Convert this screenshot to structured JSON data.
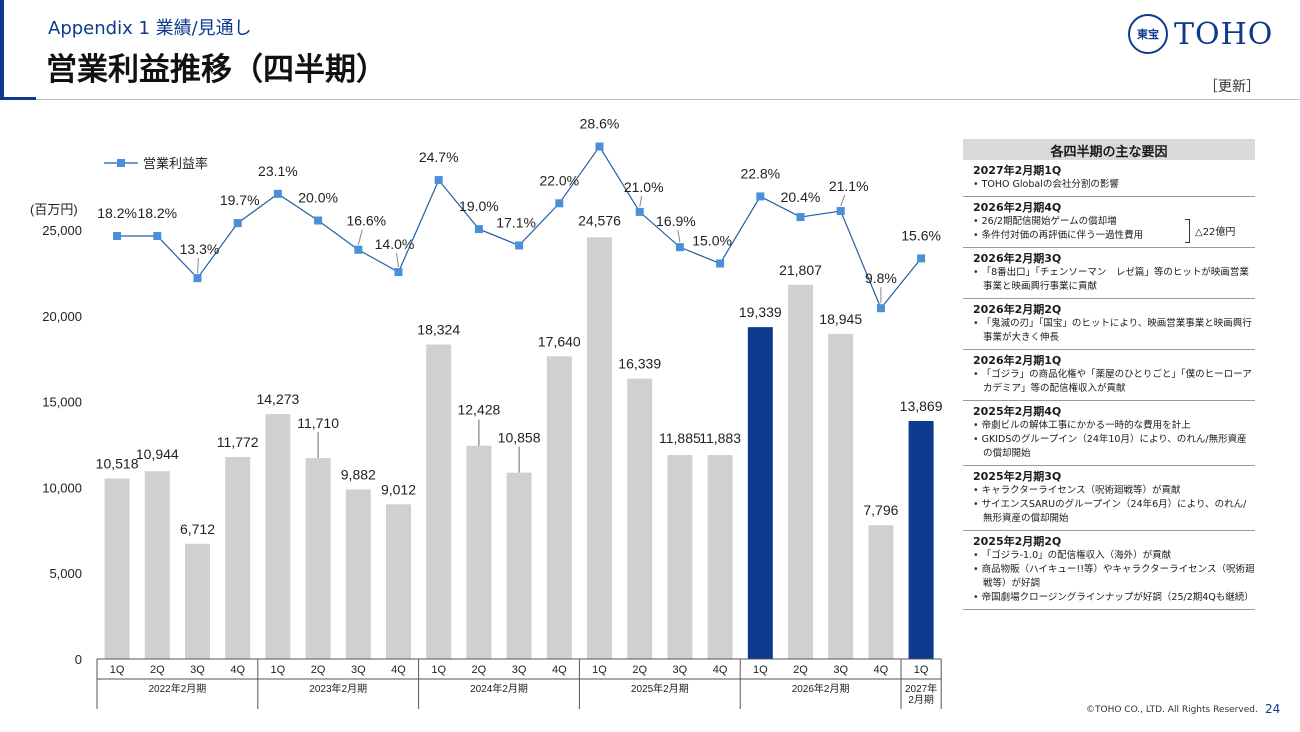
{
  "header": {
    "subtitle": "Appendix 1  業績/見通し",
    "title": "営業利益推移（四半期）",
    "logo_seal": "東宝",
    "logo_text": "TOHO",
    "update_tag": "［更新］"
  },
  "chart_data": {
    "type": "bar+line",
    "ylabel": "(百万円)",
    "ylim": [
      0,
      25000
    ],
    "yticks": [
      "0",
      "5,000",
      "10,000",
      "15,000",
      "20,000",
      "25,000"
    ],
    "quarters": [
      "1Q",
      "2Q",
      "3Q",
      "4Q",
      "1Q",
      "2Q",
      "3Q",
      "4Q",
      "1Q",
      "2Q",
      "3Q",
      "4Q",
      "1Q",
      "2Q",
      "3Q",
      "4Q",
      "1Q",
      "2Q",
      "3Q",
      "4Q",
      "1Q"
    ],
    "year_groups": [
      {
        "label": "2022年2月期",
        "count": 4
      },
      {
        "label": "2023年2月期",
        "count": 4
      },
      {
        "label": "2024年2月期",
        "count": 4
      },
      {
        "label": "2025年2月期",
        "count": 4
      },
      {
        "label": "2026年2月期",
        "count": 4
      },
      {
        "label": "2027年\n2月期",
        "count": 1
      }
    ],
    "bars": {
      "values": [
        10518,
        10944,
        6712,
        11772,
        14273,
        11710,
        9882,
        9012,
        18324,
        12428,
        10858,
        17640,
        24576,
        16339,
        11885,
        11883,
        19339,
        21807,
        18945,
        7796,
        13869
      ],
      "labels": [
        "10,518",
        "10,944",
        "6,712",
        "11,772",
        "14,273",
        "11,710",
        "9,882",
        "9,012",
        "18,324",
        "12,428",
        "10,858",
        "17,640",
        "24,576",
        "16,339",
        "11,885",
        "11,883",
        "19,339",
        "21,807",
        "18,945",
        "7,796",
        "13,869"
      ],
      "highlight": [
        16,
        20
      ],
      "color": "#d0d0d0",
      "highlight_color": "#0d3a8c"
    },
    "line": {
      "name": "営業利益率",
      "values": [
        18.2,
        18.2,
        13.3,
        19.7,
        23.1,
        20.0,
        16.6,
        14.0,
        24.7,
        19.0,
        17.1,
        22.0,
        28.6,
        21.0,
        16.9,
        15.0,
        22.8,
        20.4,
        21.1,
        9.8,
        15.6
      ],
      "labels": [
        "18.2%",
        "18.2%",
        "13.3%",
        "19.7%",
        "23.1%",
        "20.0%",
        "16.6%",
        "14.0%",
        "24.7%",
        "19.0%",
        "17.1%",
        "22.0%",
        "28.6%",
        "21.0%",
        "16.9%",
        "15.0%",
        "22.8%",
        "20.4%",
        "21.1%",
        "9.8%",
        "15.6%"
      ],
      "color": "#1f5fa8",
      "marker_color": "#4a8fd9"
    },
    "legend": "top-left"
  },
  "factors": {
    "heading": "各四半期の主な要因",
    "items": [
      {
        "title": "2027年2月期1Q",
        "bullets": [
          "TOHO Globalの会社分割の影響"
        ]
      },
      {
        "title": "2026年2月期4Q",
        "bullets": [
          "26/2期配信開始ゲームの償却増",
          "条件付対価の再評価に伴う一過性費用"
        ],
        "side_note": "△22億円"
      },
      {
        "title": "2026年2月期3Q",
        "bullets": [
          "「8番出口」「チェンソーマン　レゼ篇」等のヒットが映画営業事業と映画興行事業に貢献"
        ]
      },
      {
        "title": "2026年2月期2Q",
        "bullets": [
          "「鬼滅の刃」「国宝」のヒットにより、映画営業事業と映画興行事業が大きく伸長"
        ]
      },
      {
        "title": "2026年2月期1Q",
        "bullets": [
          "「ゴジラ」の商品化権や「薬屋のひとりごと」「僕のヒーローアカデミア」等の配信権収入が貢献"
        ]
      },
      {
        "title": "2025年2月期4Q",
        "bullets": [
          "帝劇ビルの解体工事にかかる一時的な費用を計上",
          "GKIDSのグループイン（24年10月）により、のれん/無形資産の償却開始"
        ]
      },
      {
        "title": "2025年2月期3Q",
        "bullets": [
          "キャラクターライセンス（呪術廻戦等）が貢献",
          "サイエンスSARUのグループイン（24年6月）により、のれん/無形資産の償却開始"
        ]
      },
      {
        "title": "2025年2月期2Q",
        "bullets": [
          "「ゴジラ-1.0」の配信権収入（海外）が貢献",
          "商品物販（ハイキュー!!等）やキャラクターライセンス（呪術廻戦等）が好調",
          "帝国劇場クロージングラインナップが好調（25/2期4Qも継続）"
        ]
      }
    ]
  },
  "footer": {
    "copyright": "©TOHO CO., LTD. All Rights Reserved.",
    "page_number": "24"
  }
}
